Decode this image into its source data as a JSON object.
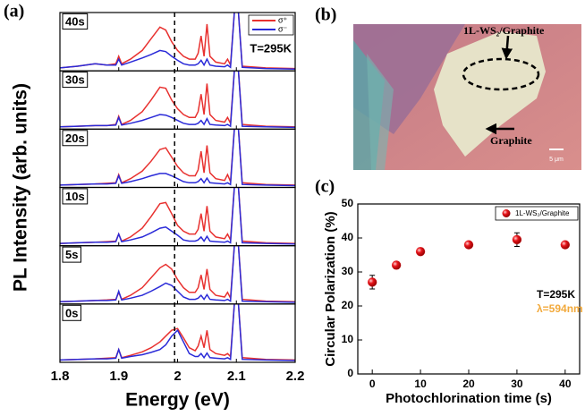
{
  "chart_data": [
    {
      "type": "line",
      "panel_label": "(a)",
      "xlabel": "Energy (eV)",
      "ylabel": "PL Intensity (arb. units)",
      "xlim": [
        1.8,
        2.2
      ],
      "xticks": [
        1.8,
        1.9,
        2.0,
        2.1,
        2.2
      ],
      "ylim": [
        0,
        1
      ],
      "reference_line": 1.995,
      "annotation": "T=295K",
      "legend": [
        {
          "name": "σ⁺",
          "color": "#e8312f"
        },
        {
          "name": "σ⁻",
          "color": "#2a2ad8"
        }
      ],
      "x": [
        1.8,
        1.83,
        1.86,
        1.88,
        1.895,
        1.9,
        1.905,
        1.92,
        1.94,
        1.955,
        1.97,
        1.98,
        1.99,
        2.0,
        2.01,
        2.02,
        2.03,
        2.035,
        2.04,
        2.045,
        2.05,
        2.055,
        2.065,
        2.08,
        2.085,
        2.09,
        2.1,
        2.11,
        2.15,
        2.2
      ],
      "panels": [
        {
          "label": "40s",
          "series": [
            {
              "values": [
                0.05,
                0.08,
                0.12,
                0.1,
                0.12,
                0.25,
                0.12,
                0.2,
                0.35,
                0.55,
                0.75,
                0.7,
                0.5,
                0.35,
                0.25,
                0.2,
                0.2,
                0.3,
                0.6,
                0.25,
                0.8,
                0.25,
                0.15,
                0.12,
                0.2,
                0.1,
                1.5,
                0.08,
                0.05,
                0.04
              ]
            },
            {
              "values": [
                0.05,
                0.08,
                0.12,
                0.1,
                0.1,
                0.2,
                0.1,
                0.15,
                0.22,
                0.28,
                0.35,
                0.33,
                0.25,
                0.18,
                0.12,
                0.1,
                0.1,
                0.12,
                0.18,
                0.1,
                0.2,
                0.1,
                0.08,
                0.07,
                0.1,
                0.06,
                1.5,
                0.06,
                0.04,
                0.03
              ]
            }
          ]
        },
        {
          "label": "30s",
          "series": [
            {
              "values": [
                0.04,
                0.05,
                0.06,
                0.06,
                0.08,
                0.22,
                0.08,
                0.15,
                0.3,
                0.5,
                0.72,
                0.7,
                0.5,
                0.35,
                0.25,
                0.2,
                0.2,
                0.3,
                0.6,
                0.25,
                0.78,
                0.25,
                0.15,
                0.12,
                0.2,
                0.1,
                1.5,
                0.08,
                0.05,
                0.04
              ]
            },
            {
              "values": [
                0.04,
                0.05,
                0.06,
                0.06,
                0.07,
                0.2,
                0.07,
                0.1,
                0.15,
                0.2,
                0.25,
                0.24,
                0.2,
                0.15,
                0.1,
                0.08,
                0.08,
                0.1,
                0.15,
                0.08,
                0.18,
                0.08,
                0.07,
                0.06,
                0.08,
                0.05,
                1.5,
                0.05,
                0.04,
                0.03
              ]
            }
          ]
        },
        {
          "label": "20s",
          "series": [
            {
              "values": [
                0.04,
                0.05,
                0.06,
                0.07,
                0.08,
                0.22,
                0.08,
                0.15,
                0.28,
                0.45,
                0.65,
                0.68,
                0.52,
                0.36,
                0.25,
                0.2,
                0.2,
                0.3,
                0.62,
                0.25,
                0.72,
                0.25,
                0.15,
                0.12,
                0.22,
                0.1,
                1.5,
                0.08,
                0.05,
                0.04
              ]
            },
            {
              "values": [
                0.04,
                0.05,
                0.06,
                0.06,
                0.07,
                0.2,
                0.07,
                0.1,
                0.15,
                0.2,
                0.24,
                0.24,
                0.2,
                0.15,
                0.1,
                0.08,
                0.08,
                0.1,
                0.15,
                0.08,
                0.16,
                0.08,
                0.07,
                0.06,
                0.08,
                0.05,
                1.5,
                0.05,
                0.04,
                0.03
              ]
            }
          ]
        },
        {
          "label": "10s",
          "series": [
            {
              "values": [
                0.04,
                0.05,
                0.06,
                0.07,
                0.08,
                0.2,
                0.08,
                0.15,
                0.3,
                0.5,
                0.72,
                0.74,
                0.55,
                0.35,
                0.25,
                0.2,
                0.2,
                0.28,
                0.55,
                0.25,
                0.68,
                0.25,
                0.15,
                0.12,
                0.2,
                0.1,
                1.5,
                0.08,
                0.05,
                0.04
              ]
            },
            {
              "values": [
                0.04,
                0.05,
                0.06,
                0.06,
                0.07,
                0.2,
                0.07,
                0.1,
                0.15,
                0.22,
                0.3,
                0.32,
                0.25,
                0.18,
                0.1,
                0.08,
                0.08,
                0.1,
                0.15,
                0.08,
                0.16,
                0.08,
                0.07,
                0.06,
                0.08,
                0.05,
                1.5,
                0.05,
                0.04,
                0.03
              ]
            }
          ]
        },
        {
          "label": "5s",
          "series": [
            {
              "values": [
                0.04,
                0.05,
                0.06,
                0.07,
                0.08,
                0.2,
                0.08,
                0.15,
                0.28,
                0.45,
                0.62,
                0.68,
                0.6,
                0.42,
                0.28,
                0.2,
                0.2,
                0.28,
                0.5,
                0.25,
                0.6,
                0.25,
                0.15,
                0.12,
                0.2,
                0.1,
                1.5,
                0.08,
                0.05,
                0.04
              ]
            },
            {
              "values": [
                0.04,
                0.05,
                0.06,
                0.06,
                0.07,
                0.22,
                0.07,
                0.1,
                0.15,
                0.22,
                0.3,
                0.36,
                0.32,
                0.22,
                0.12,
                0.08,
                0.08,
                0.1,
                0.15,
                0.08,
                0.16,
                0.08,
                0.07,
                0.06,
                0.08,
                0.05,
                1.5,
                0.05,
                0.04,
                0.03
              ]
            }
          ]
        },
        {
          "label": "0s",
          "series": [
            {
              "values": [
                0.04,
                0.05,
                0.06,
                0.07,
                0.08,
                0.22,
                0.08,
                0.12,
                0.18,
                0.25,
                0.35,
                0.45,
                0.55,
                0.58,
                0.42,
                0.25,
                0.2,
                0.28,
                0.45,
                0.25,
                0.55,
                0.22,
                0.15,
                0.12,
                0.15,
                0.1,
                1.5,
                0.08,
                0.05,
                0.04
              ]
            },
            {
              "values": [
                0.04,
                0.05,
                0.06,
                0.06,
                0.07,
                0.22,
                0.07,
                0.1,
                0.13,
                0.17,
                0.22,
                0.3,
                0.45,
                0.55,
                0.35,
                0.15,
                0.1,
                0.1,
                0.15,
                0.08,
                0.16,
                0.08,
                0.07,
                0.06,
                0.08,
                0.05,
                1.5,
                0.05,
                0.04,
                0.03
              ]
            }
          ]
        }
      ]
    },
    {
      "type": "image",
      "panel_label": "(b)",
      "labels": [
        "1L-WS₂/Graphite",
        "Graphite"
      ],
      "scale_bar": "5 μm"
    },
    {
      "type": "scatter",
      "panel_label": "(c)",
      "xlabel": "Photochlorination time (s)",
      "ylabel": "Circular Polarization (%)",
      "xlim": [
        -3,
        43
      ],
      "xticks": [
        0,
        10,
        20,
        30,
        40
      ],
      "ylim": [
        0,
        50
      ],
      "yticks": [
        0,
        10,
        20,
        30,
        40,
        50
      ],
      "series": [
        {
          "name": "1L-WS₂/Graphite",
          "color": "#e8141a",
          "x": [
            0,
            5,
            10,
            20,
            30,
            40
          ],
          "values": [
            27,
            32,
            36,
            38,
            39.5,
            38
          ],
          "errors": [
            2,
            1,
            1,
            0.8,
            2,
            0.8
          ]
        }
      ],
      "annotations": [
        {
          "text": "T=295K",
          "color": "#000000"
        },
        {
          "text": "λ=594nm",
          "color": "#f2a93b"
        }
      ]
    }
  ]
}
